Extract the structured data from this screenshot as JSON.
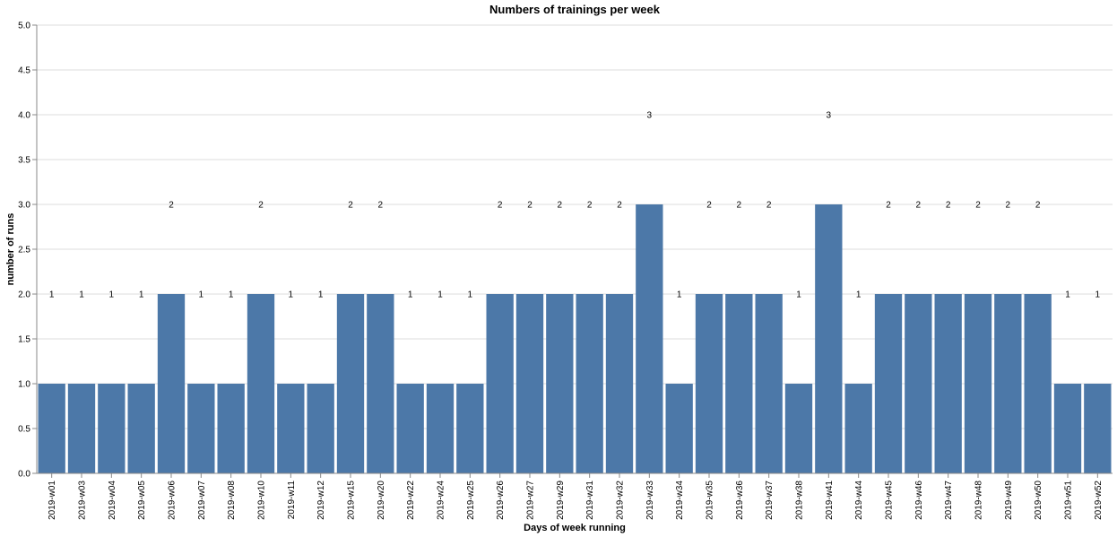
{
  "chart_data": {
    "type": "bar",
    "title": "Numbers of trainings per week",
    "xlabel": "Days of week running",
    "ylabel": "number of runs",
    "ylim": [
      0,
      5
    ],
    "yticks": [
      "0.0",
      "0.5",
      "1.0",
      "1.5",
      "2.0",
      "2.5",
      "3.0",
      "3.5",
      "4.0",
      "4.5",
      "5.0"
    ],
    "grid": true,
    "bar_color": "#4c78a8",
    "categories": [
      "2019-w01",
      "2019-w03",
      "2019-w04",
      "2019-w05",
      "2019-w06",
      "2019-w07",
      "2019-w08",
      "2019-w10",
      "2019-w11",
      "2019-w12",
      "2019-w15",
      "2019-w20",
      "2019-w22",
      "2019-w24",
      "2019-w25",
      "2019-w26",
      "2019-w27",
      "2019-w29",
      "2019-w31",
      "2019-w32",
      "2019-w33",
      "2019-w34",
      "2019-w35",
      "2019-w36",
      "2019-w37",
      "2019-w38",
      "2019-w41",
      "2019-w44",
      "2019-w45",
      "2019-w46",
      "2019-w47",
      "2019-w48",
      "2019-w49",
      "2019-w50",
      "2019-w51",
      "2019-w52"
    ],
    "values": [
      1,
      1,
      1,
      1,
      2,
      1,
      1,
      2,
      1,
      1,
      2,
      2,
      1,
      1,
      1,
      2,
      2,
      2,
      2,
      2,
      3,
      1,
      2,
      2,
      2,
      1,
      3,
      1,
      2,
      2,
      2,
      2,
      2,
      2,
      1,
      1
    ],
    "data_labels": [
      "1",
      "1",
      "1",
      "1",
      "2",
      "1",
      "1",
      "2",
      "1",
      "1",
      "2",
      "2",
      "1",
      "1",
      "1",
      "2",
      "2",
      "2",
      "2",
      "2",
      "3",
      "1",
      "2",
      "2",
      "2",
      "1",
      "3",
      "1",
      "2",
      "2",
      "2",
      "2",
      "2",
      "2",
      "1",
      "1"
    ]
  }
}
